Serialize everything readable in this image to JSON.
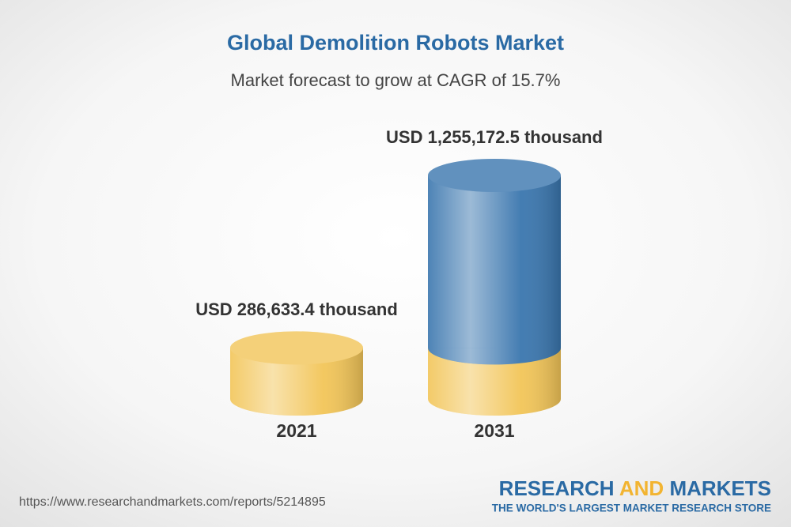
{
  "chart_data": {
    "type": "cylinder",
    "title": "Global Demolition Robots Market",
    "subtitle": "Market forecast to grow at CAGR of 15.7%",
    "categories": [
      "2021",
      "2031"
    ],
    "values": [
      286633.4,
      1255172.5
    ],
    "value_labels": [
      "USD 286,633.4 thousand",
      "USD 1,255,172.5 thousand"
    ],
    "colors": [
      "#f2c558",
      "#3a76ae"
    ]
  },
  "footer": {
    "url": "https://www.researchandmarkets.com/reports/5214895",
    "brand": [
      "RESEARCH",
      "AND",
      "MARKETS"
    ],
    "tagline": "THE WORLD'S LARGEST MARKET RESEARCH STORE"
  }
}
